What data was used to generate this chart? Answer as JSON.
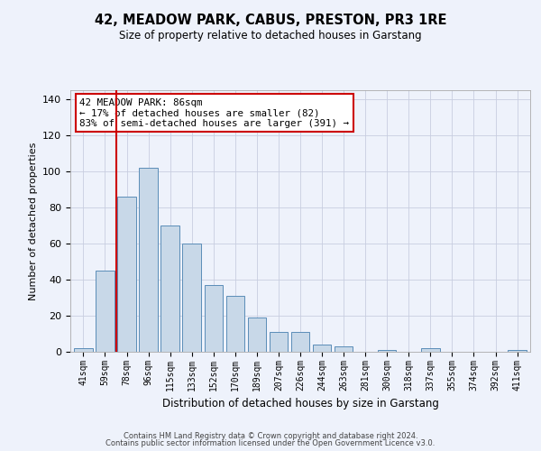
{
  "title": "42, MEADOW PARK, CABUS, PRESTON, PR3 1RE",
  "subtitle": "Size of property relative to detached houses in Garstang",
  "xlabel": "Distribution of detached houses by size in Garstang",
  "ylabel": "Number of detached properties",
  "bar_color": "#c8d8e8",
  "bar_edge_color": "#5b8db8",
  "background_color": "#eef2fb",
  "grid_color": "#c8cee0",
  "vline_color": "#cc0000",
  "categories": [
    "41sqm",
    "59sqm",
    "78sqm",
    "96sqm",
    "115sqm",
    "133sqm",
    "152sqm",
    "170sqm",
    "189sqm",
    "207sqm",
    "226sqm",
    "244sqm",
    "263sqm",
    "281sqm",
    "300sqm",
    "318sqm",
    "337sqm",
    "355sqm",
    "374sqm",
    "392sqm",
    "411sqm"
  ],
  "values": [
    2,
    45,
    86,
    102,
    70,
    60,
    37,
    31,
    19,
    11,
    11,
    4,
    3,
    0,
    1,
    0,
    2,
    0,
    0,
    0,
    1
  ],
  "ylim": [
    0,
    145
  ],
  "yticks": [
    0,
    20,
    40,
    60,
    80,
    100,
    120,
    140
  ],
  "annotation_text": "42 MEADOW PARK: 86sqm\n← 17% of detached houses are smaller (82)\n83% of semi-detached houses are larger (391) →",
  "annotation_box_color": "#ffffff",
  "annotation_box_edge": "#cc0000",
  "vline_index": 2,
  "footer1": "Contains HM Land Registry data © Crown copyright and database right 2024.",
  "footer2": "Contains public sector information licensed under the Open Government Licence v3.0."
}
